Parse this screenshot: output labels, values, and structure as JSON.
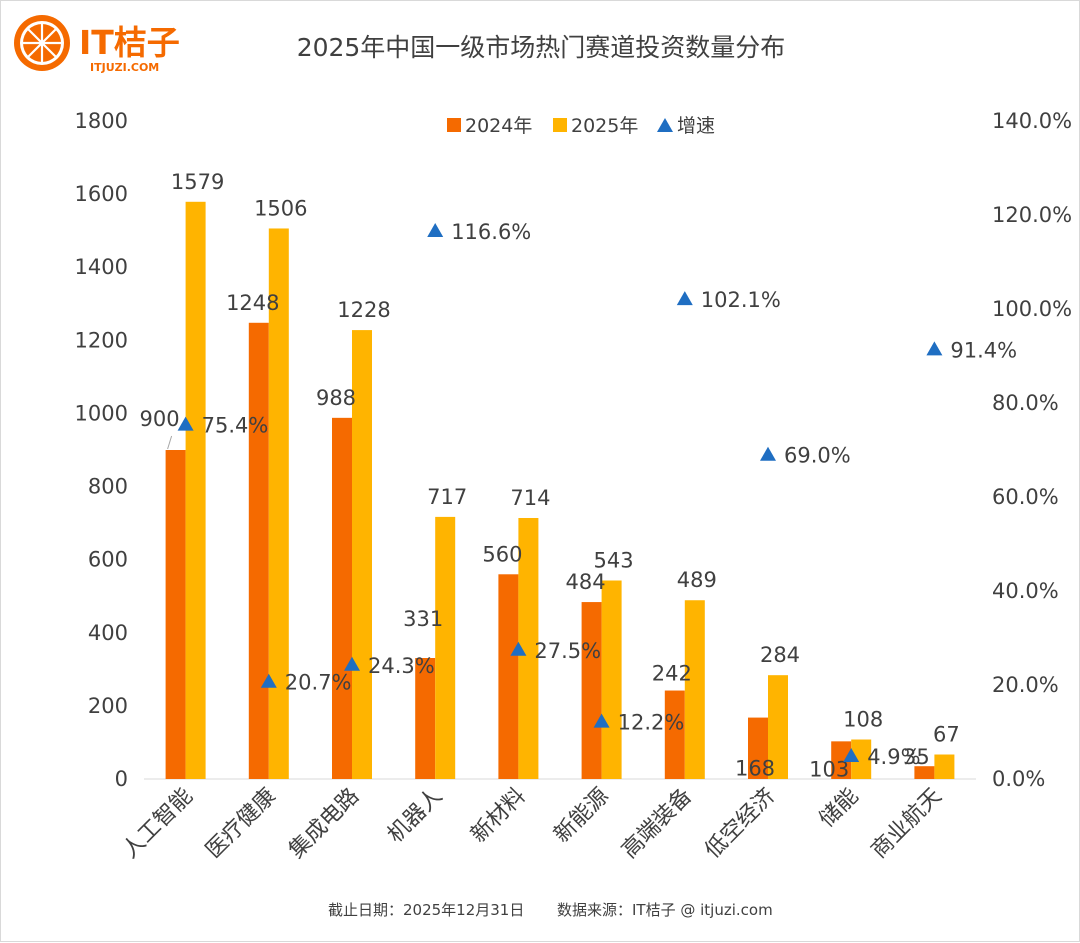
{
  "brand": {
    "name": "IT桔子",
    "url": "ITJUZI.COM",
    "color": "#F56A00"
  },
  "footer": {
    "date_text": "截止日期：2025年12月31日",
    "source_text": "数据来源：IT桔子 @ itjuzi.com"
  },
  "colors": {
    "series_2024": "#F56A00",
    "series_2025": "#FFB400",
    "growth_marker": "#1F6EC2",
    "text": "#404040",
    "axis": "#d9d9d9"
  },
  "chart_data": {
    "type": "bar",
    "title": "2025年中国一级市场热门赛道投资数量分布",
    "categories": [
      "人工智能",
      "医疗健康",
      "集成电路",
      "机器人",
      "新材料",
      "新能源",
      "高端装备",
      "低空经济",
      "储能",
      "商业航天"
    ],
    "series": [
      {
        "name": "2024年",
        "type": "bar",
        "axis": "left",
        "values": [
          900,
          1248,
          988,
          331,
          560,
          484,
          242,
          168,
          103,
          35
        ],
        "labels": [
          "900",
          "1248",
          "988",
          "331",
          "560",
          "484",
          "242",
          "168",
          "103",
          "35"
        ]
      },
      {
        "name": "2025年",
        "type": "bar",
        "axis": "left",
        "values": [
          1579,
          1506,
          1228,
          717,
          714,
          543,
          489,
          284,
          108,
          67
        ],
        "labels": [
          "1579",
          "1506",
          "1228",
          "717",
          "714",
          "543",
          "489",
          "284",
          "108",
          "67"
        ]
      },
      {
        "name": "增速",
        "type": "scatter",
        "marker": "triangle",
        "axis": "right",
        "values": [
          75.4,
          20.7,
          24.3,
          116.6,
          27.5,
          12.2,
          102.1,
          69.0,
          4.9,
          91.4
        ],
        "labels": [
          "75.4%",
          "20.7%",
          "24.3%",
          "116.6%",
          "27.5%",
          "12.2%",
          "102.1%",
          "69.0%",
          "4.9%",
          "91.4%"
        ]
      }
    ],
    "y_left": {
      "min": 0,
      "max": 1800,
      "ticks": [
        "0",
        "200",
        "400",
        "600",
        "800",
        "1000",
        "1200",
        "1400",
        "1600",
        "1800"
      ]
    },
    "y_right": {
      "min": 0,
      "max": 140,
      "ticks": [
        "0.0%",
        "20.0%",
        "40.0%",
        "60.0%",
        "80.0%",
        "100.0%",
        "120.0%",
        "140.0%"
      ]
    },
    "legend": {
      "position": "top-center"
    },
    "grid": false
  }
}
